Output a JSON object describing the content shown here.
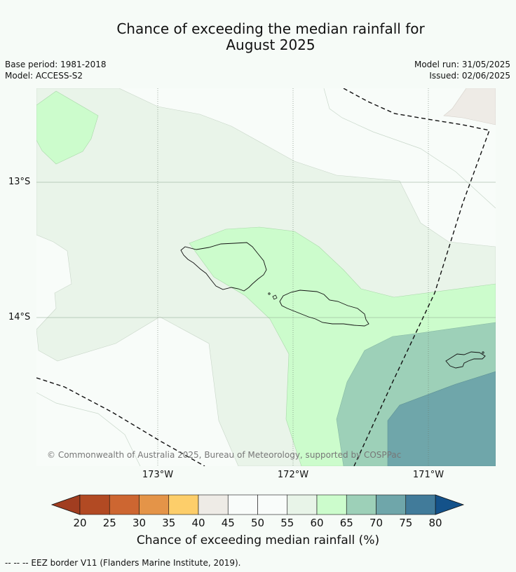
{
  "title_line1": "Chance of exceeding the median rainfall for",
  "title_line2": "August 2025",
  "base_period": "Base period: 1981-2018",
  "model": "Model: ACCESS-S2",
  "model_run": "Model run: 31/05/2025",
  "issued": "Issued: 02/06/2025",
  "map": {
    "lat_labels": [
      "13°S",
      "14°S"
    ],
    "lon_labels": [
      "173°W",
      "172°W",
      "171°W"
    ],
    "copyright": "© Commonwealth of Australia 2025, Bureau of Meteorology, supported by COSPPac"
  },
  "colorbar": {
    "ticks": [
      "20",
      "25",
      "30",
      "35",
      "40",
      "45",
      "50",
      "55",
      "60",
      "65",
      "70",
      "75",
      "80"
    ],
    "colors": [
      "#b24a23",
      "#cd6631",
      "#e49448",
      "#fdce6a",
      "#eeebe6",
      "#f9fcfa",
      "#f9fcfa",
      "#e8f4e8",
      "#ccfccc",
      "#9dd0b8",
      "#6fa6aa",
      "#417b9a"
    ],
    "under_color": "#a13d20",
    "over_color": "#14528a",
    "label": "Chance of exceeding median rainfall (%)"
  },
  "footnote": "--  --  -- EEZ border V11 (Flanders Marine Institute, 2019)."
}
